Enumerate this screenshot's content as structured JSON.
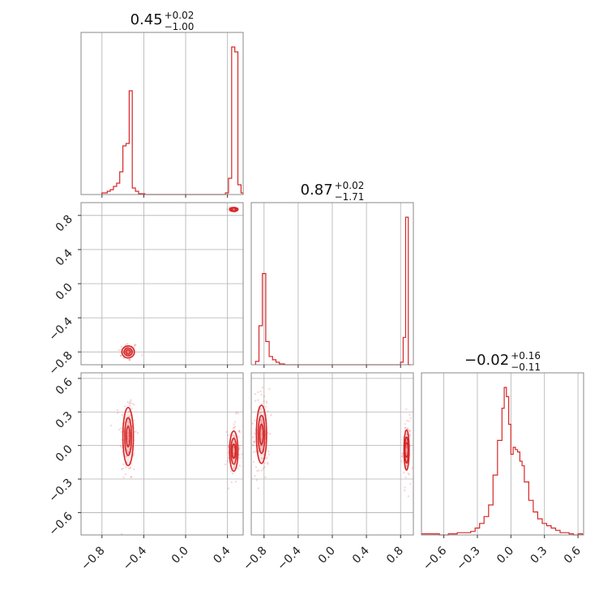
{
  "chart_data": {
    "type": "corner",
    "color": "#d62728",
    "grid": true,
    "parameters": [
      {
        "title": {
          "value": "0.45",
          "plus": "+0.02",
          "minus": "−1.00"
        },
        "range": [
          -1.0,
          0.55
        ],
        "ticks": [
          {
            "value": -0.8,
            "label": "−0.8"
          },
          {
            "value": -0.4,
            "label": "−0.4"
          },
          {
            "value": 0.0,
            "label": "0.0"
          },
          {
            "value": 0.4,
            "label": "0.4"
          }
        ],
        "histogram": {
          "edges": [
            -0.8,
            -0.75,
            -0.72,
            -0.69,
            -0.66,
            -0.63,
            -0.6,
            -0.57,
            -0.54,
            -0.51,
            -0.48,
            -0.45,
            -0.42,
            -0.39,
            0.38,
            0.41,
            0.44,
            0.47,
            0.5,
            0.53,
            0.55
          ],
          "counts": [
            2,
            4,
            6,
            10,
            14,
            28,
            60,
            63,
            128,
            8,
            4,
            1,
            1,
            0,
            2,
            20,
            182,
            176,
            12,
            2
          ]
        }
      },
      {
        "title": {
          "value": "0.87",
          "plus": "+0.02",
          "minus": "−1.71"
        },
        "range": [
          -0.95,
          0.95
        ],
        "ticks": [
          {
            "value": -0.8,
            "label": "−0.8"
          },
          {
            "value": -0.4,
            "label": "−0.4"
          },
          {
            "value": 0.0,
            "label": "0.0"
          },
          {
            "value": 0.4,
            "label": "0.4"
          },
          {
            "value": 0.8,
            "label": "0.8"
          }
        ],
        "histogram": {
          "edges": [
            -0.9,
            -0.86,
            -0.82,
            -0.78,
            -0.74,
            -0.7,
            -0.66,
            -0.62,
            -0.56,
            0.8,
            0.83,
            0.86,
            0.89,
            0.92
          ],
          "counts": [
            4,
            47,
            110,
            28,
            10,
            6,
            3,
            1,
            0,
            3,
            33,
            178,
            0
          ]
        }
      },
      {
        "title": {
          "value": "−0.02",
          "plus": "+0.16",
          "minus": "−0.11"
        },
        "range": [
          -0.8,
          0.65
        ],
        "ticks": [
          {
            "value": -0.6,
            "label": "−0.6"
          },
          {
            "value": -0.3,
            "label": "−0.3"
          },
          {
            "value": 0.0,
            "label": "0.0"
          },
          {
            "value": 0.3,
            "label": "0.3"
          },
          {
            "value": 0.6,
            "label": "0.6"
          }
        ],
        "histogram": {
          "edges": [
            -0.8,
            -0.72,
            -0.64,
            -0.56,
            -0.48,
            -0.4,
            -0.36,
            -0.32,
            -0.28,
            -0.24,
            -0.2,
            -0.16,
            -0.12,
            -0.08,
            -0.06,
            -0.04,
            -0.02,
            0.0,
            0.02,
            0.04,
            0.06,
            0.08,
            0.1,
            0.12,
            0.16,
            0.2,
            0.24,
            0.28,
            0.32,
            0.36,
            0.4,
            0.44,
            0.48,
            0.52,
            0.56,
            0.6,
            0.64
          ],
          "counts": [
            1,
            1,
            0,
            1,
            2,
            2,
            3,
            6,
            10,
            16,
            26,
            52,
            82,
            110,
            128,
            120,
            96,
            70,
            76,
            74,
            72,
            64,
            60,
            46,
            30,
            20,
            14,
            10,
            8,
            6,
            4,
            2,
            2,
            1,
            0,
            1
          ]
        }
      }
    ],
    "pairs": [
      {
        "x_param": 0,
        "y_param": 1,
        "y_ticks": [
          {
            "value": -0.8,
            "label": "−0.8"
          },
          {
            "value": -0.4,
            "label": "−0.4"
          },
          {
            "value": 0.0,
            "label": "0.0"
          },
          {
            "value": 0.4,
            "label": "0.4"
          },
          {
            "value": 0.8,
            "label": "0.8"
          }
        ],
        "clusters": [
          {
            "x": -0.55,
            "y": -0.8,
            "sx": 0.03,
            "sy": 0.035,
            "n": 50
          },
          {
            "x": 0.46,
            "y": 0.87,
            "sx": 0.02,
            "sy": 0.012,
            "n": 20
          }
        ]
      },
      {
        "x_param": 0,
        "y_param": 2,
        "y_ticks": [
          {
            "value": -0.6,
            "label": "−0.6"
          },
          {
            "value": -0.3,
            "label": "−0.3"
          },
          {
            "value": 0.0,
            "label": "0.0"
          },
          {
            "value": 0.3,
            "label": "0.3"
          },
          {
            "value": 0.6,
            "label": "0.6"
          }
        ],
        "clusters": [
          {
            "x": -0.55,
            "y": 0.08,
            "sx": 0.025,
            "sy": 0.13,
            "n": 120
          },
          {
            "x": 0.46,
            "y": -0.05,
            "sx": 0.02,
            "sy": 0.09,
            "n": 70
          }
        ]
      },
      {
        "x_param": 1,
        "y_param": 2,
        "clusters": [
          {
            "x": -0.83,
            "y": 0.1,
            "sx": 0.03,
            "sy": 0.13,
            "n": 120
          },
          {
            "x": 0.87,
            "y": -0.04,
            "sx": 0.015,
            "sy": 0.09,
            "n": 70
          }
        ]
      }
    ]
  }
}
